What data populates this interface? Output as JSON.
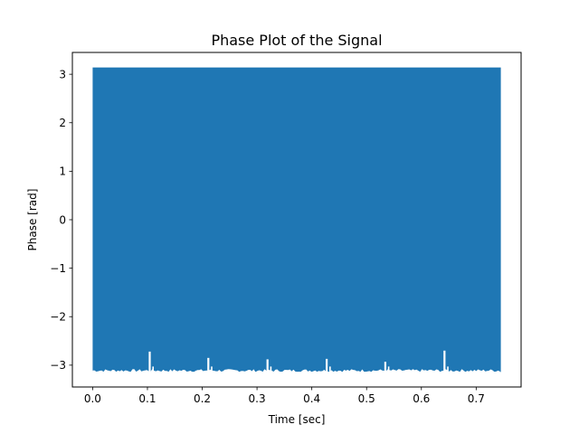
{
  "chart_data": {
    "type": "line",
    "title": "Phase Plot of the Signal",
    "xlabel": "Time [sec]",
    "ylabel": "Phase [rad]",
    "xlim": [
      -0.037,
      0.782
    ],
    "ylim": [
      -3.45,
      3.45
    ],
    "xticks": [
      0.0,
      0.1,
      0.2,
      0.3,
      0.4,
      0.5,
      0.6,
      0.7
    ],
    "xtick_labels": [
      "0.0",
      "0.1",
      "0.2",
      "0.3",
      "0.4",
      "0.5",
      "0.6",
      "0.7"
    ],
    "yticks": [
      -3,
      -2,
      -1,
      0,
      1,
      2,
      3
    ],
    "ytick_labels": [
      "−3",
      "−2",
      "−1",
      "0",
      "1",
      "2",
      "3"
    ],
    "grid": false,
    "series": [
      {
        "color": "#1f77b4",
        "x_range": [
          0.0,
          0.745
        ],
        "y_range": [
          -3.14,
          3.14
        ],
        "gap_spikes": [
          {
            "x": 0.104,
            "y": -2.72
          },
          {
            "x": 0.211,
            "y": -2.85
          },
          {
            "x": 0.319,
            "y": -2.88
          },
          {
            "x": 0.427,
            "y": -2.87
          },
          {
            "x": 0.534,
            "y": -2.93
          },
          {
            "x": 0.642,
            "y": -2.7
          }
        ]
      }
    ]
  }
}
